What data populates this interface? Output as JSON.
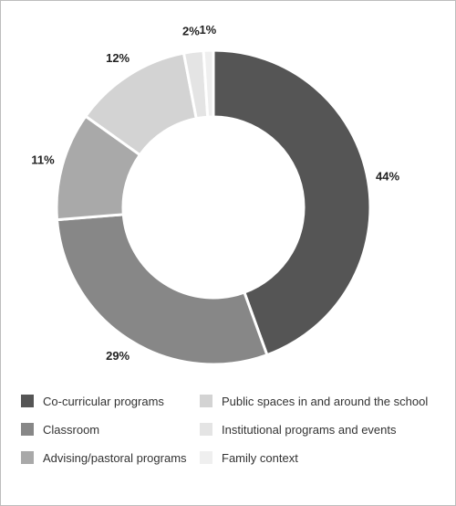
{
  "chart_data": {
    "type": "pie",
    "style": "donut",
    "categories": [
      "Co-curricular programs",
      "Classroom",
      "Advising/pastoral programs",
      "Public spaces in and around the school",
      "Institutional programs and events",
      "Family context"
    ],
    "values": [
      44,
      29,
      11,
      12,
      2,
      1
    ],
    "value_labels": [
      "44%",
      "29%",
      "11%",
      "12%",
      "2%",
      "1%"
    ],
    "colors": [
      "#555555",
      "#878787",
      "#a9a9a9",
      "#d3d3d3",
      "#e4e4e4",
      "#efefef"
    ],
    "legend_position": "bottom"
  }
}
